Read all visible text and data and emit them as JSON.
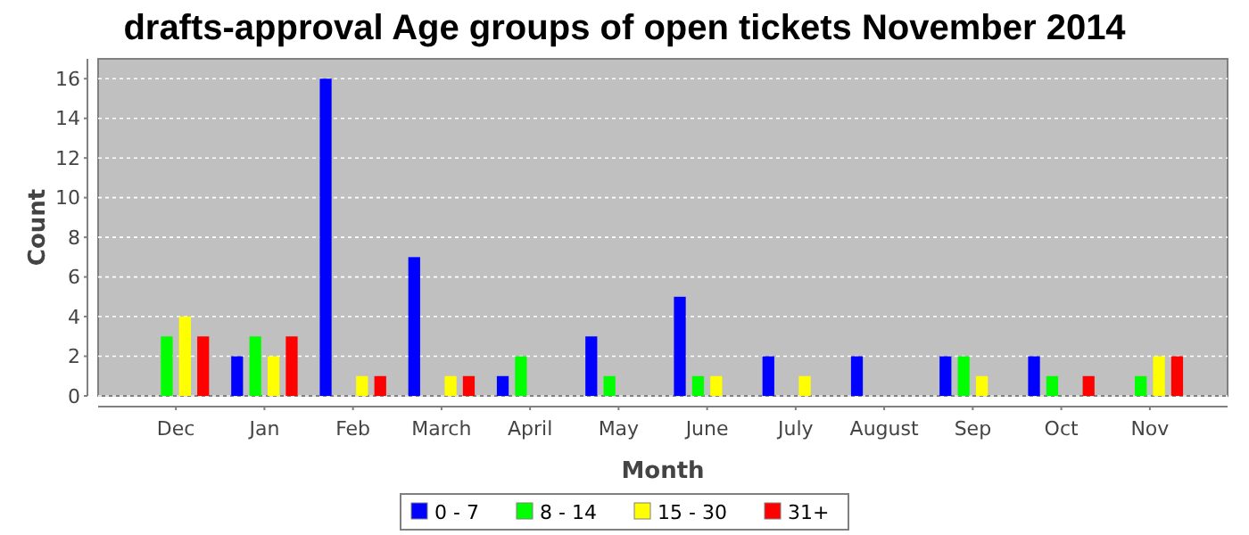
{
  "chart_data": {
    "type": "bar",
    "title": "drafts-approval Age groups of open tickets November 2014",
    "xlabel": "Month",
    "ylabel": "Count",
    "categories": [
      "Dec",
      "Jan",
      "Feb",
      "March",
      "April",
      "May",
      "June",
      "July",
      "August",
      "Sep",
      "Oct",
      "Nov"
    ],
    "series": [
      {
        "name": "0 - 7",
        "color": "#0000ff",
        "values": [
          0,
          2,
          16,
          7,
          1,
          3,
          5,
          2,
          2,
          2,
          2,
          0
        ]
      },
      {
        "name": "8 - 14",
        "color": "#00ff00",
        "values": [
          3,
          3,
          0,
          0,
          2,
          1,
          1,
          0,
          0,
          2,
          1,
          1
        ]
      },
      {
        "name": "15 - 30",
        "color": "#ffff00",
        "values": [
          4,
          2,
          1,
          1,
          0,
          0,
          1,
          1,
          0,
          1,
          0,
          2
        ]
      },
      {
        "name": "31+",
        "color": "#ff0000",
        "values": [
          3,
          3,
          1,
          1,
          0,
          0,
          0,
          0,
          0,
          0,
          1,
          2
        ]
      }
    ],
    "ylim": [
      0,
      17
    ],
    "yticks": [
      0,
      2,
      4,
      6,
      8,
      10,
      12,
      14,
      16
    ],
    "grid": "y",
    "legend": "bottom"
  }
}
